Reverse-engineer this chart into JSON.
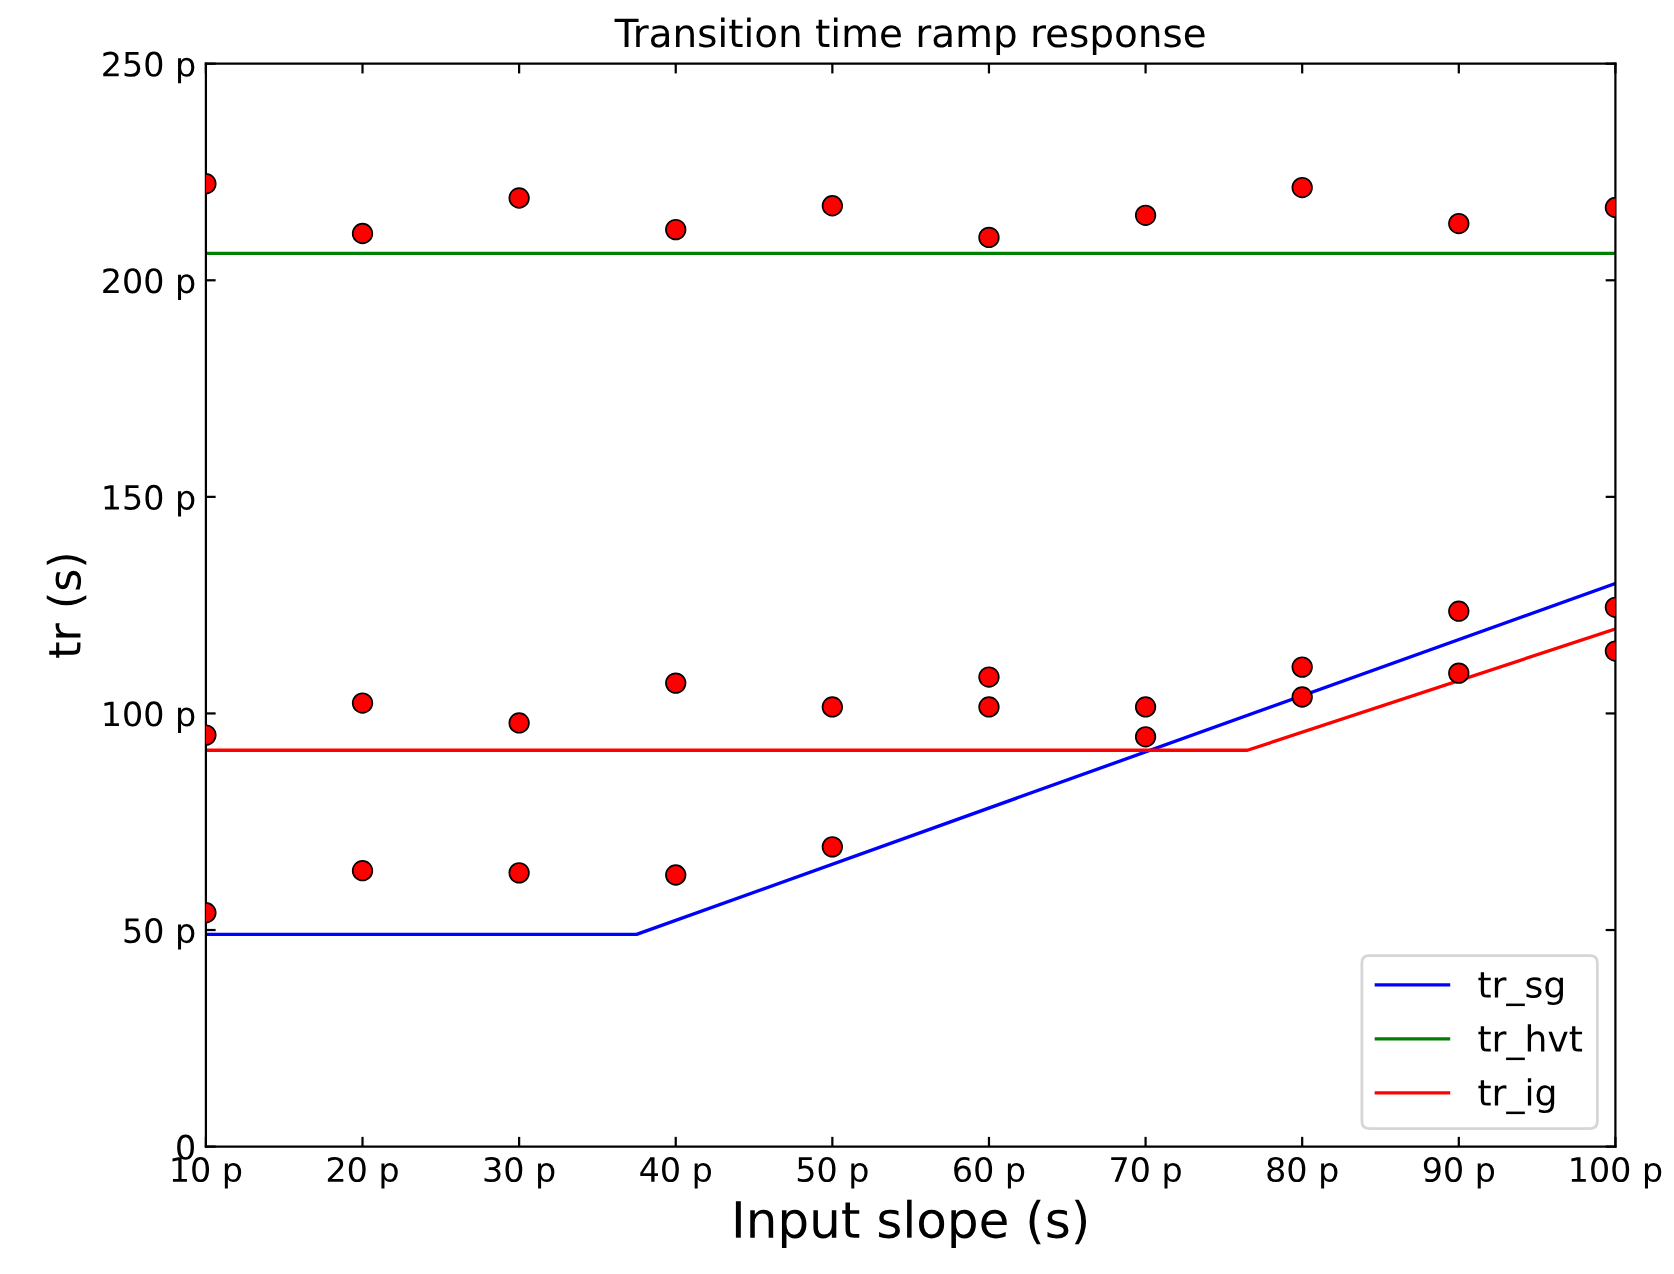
{
  "chart_data": {
    "type": "line",
    "title": "Transition time ramp response",
    "xlabel": "Input slope (s)",
    "ylabel": "tr (s)",
    "xlim": [
      10,
      100
    ],
    "xticks": [
      {
        "value": 10,
        "label": "10 p"
      },
      {
        "value": 20,
        "label": "20 p"
      },
      {
        "value": 30,
        "label": "30 p"
      },
      {
        "value": 40,
        "label": "40 p"
      },
      {
        "value": 50,
        "label": "50 p"
      },
      {
        "value": 60,
        "label": "60 p"
      },
      {
        "value": 70,
        "label": "70 p"
      },
      {
        "value": 80,
        "label": "80 p"
      },
      {
        "value": 90,
        "label": "90 p"
      },
      {
        "value": 100,
        "label": "100 p"
      }
    ],
    "ylim": [
      0,
      250
    ],
    "yticks": [
      {
        "value": 0,
        "label": "0"
      },
      {
        "value": 50,
        "label": "50 p"
      },
      {
        "value": 100,
        "label": "100 p"
      },
      {
        "value": 150,
        "label": "150 p"
      },
      {
        "value": 200,
        "label": "200 p"
      },
      {
        "value": 250,
        "label": "250 p"
      }
    ],
    "grid": false,
    "legend": "bottom right",
    "series": [
      {
        "name": "tr_sg",
        "color": "#0000ff",
        "x": [
          10,
          37.5,
          100
        ],
        "values": [
          49,
          49,
          130
        ]
      },
      {
        "name": "tr_hvt",
        "color": "#008000",
        "x": [
          10,
          100
        ],
        "values": [
          206.2,
          206.2
        ]
      },
      {
        "name": "tr_ig",
        "color": "#ff0000",
        "x": [
          10,
          76.5,
          100
        ],
        "values": [
          91.5,
          91.5,
          119.5
        ]
      },
      {
        "type": "scatter",
        "marker": "circle",
        "color": "#ff0000",
        "x": [
          10,
          20,
          30,
          40,
          50,
          60,
          70,
          80,
          90,
          100,
          10,
          20,
          30,
          40,
          50,
          60,
          60,
          70,
          70,
          80,
          80,
          90,
          90,
          100,
          100,
          10,
          20,
          30,
          40,
          50
        ],
        "values": [
          222.3,
          210.8,
          219,
          211.7,
          217.2,
          209.9,
          215,
          221.4,
          213.1,
          216.8,
          95,
          102.4,
          97.8,
          107,
          101.5,
          108.4,
          101.5,
          101.5,
          94.6,
          110.7,
          103.8,
          123.6,
          109.3,
          124.5,
          114.4,
          54,
          63.7,
          63.2,
          62.7,
          69.2
        ]
      }
    ]
  }
}
